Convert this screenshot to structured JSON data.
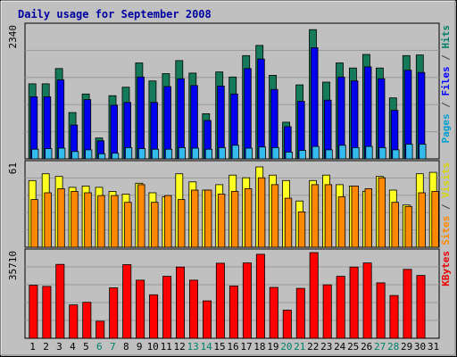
{
  "chart_data": {
    "type": "bar",
    "title": "Daily usage for September 2008",
    "days": [
      "1",
      "2",
      "3",
      "4",
      "5",
      "6",
      "7",
      "8",
      "9",
      "10",
      "11",
      "12",
      "13",
      "14",
      "15",
      "16",
      "17",
      "18",
      "19",
      "20",
      "21",
      "22",
      "23",
      "24",
      "25",
      "26",
      "27",
      "28",
      "29",
      "30",
      "31"
    ],
    "weekend_days": [
      "6",
      "7",
      "13",
      "14",
      "20",
      "21",
      "27",
      "28"
    ],
    "panels": [
      {
        "ymax_label": "2340",
        "ymax": 2340,
        "side_label_parts": [
          {
            "text": "Pages",
            "color": "#00a0d0"
          },
          {
            "text": " / ",
            "color": "#404040"
          },
          {
            "text": "Files",
            "color": "#0000ff"
          },
          {
            "text": " / ",
            "color": "#404040"
          },
          {
            "text": "Hits",
            "color": "#00806a"
          }
        ],
        "series": [
          {
            "name": "Hits",
            "color": "#157a5a",
            "values": [
              1330,
              1330,
              1600,
              820,
              1150,
              370,
              1120,
              1270,
              1700,
              1380,
              1510,
              1740,
              1520,
              800,
              1540,
              1450,
              1830,
              2010,
              1480,
              650,
              1310,
              2290,
              1360,
              1700,
              1610,
              1850,
              1610,
              1080,
              1830,
              1840
            ]
          },
          {
            "name": "Files",
            "color": "#0000ee",
            "values": [
              1100,
              1100,
              1400,
              600,
              1050,
              320,
              950,
              1000,
              1450,
              1000,
              1280,
              1420,
              1300,
              680,
              1290,
              1150,
              1600,
              1770,
              1230,
              570,
              1020,
              1970,
              1040,
              1450,
              1380,
              1630,
              1420,
              860,
              1570,
              1530
            ]
          },
          {
            "name": "Pages",
            "color": "#33bbee",
            "values": [
              170,
              180,
              190,
              130,
              160,
              90,
              100,
              200,
              180,
              170,
              170,
              200,
              190,
              170,
              200,
              240,
              190,
              210,
              200,
              120,
              150,
              220,
              160,
              240,
              200,
              220,
              200,
              160,
              260,
              260
            ]
          }
        ]
      },
      {
        "ymax_label": "61",
        "ymax": 61,
        "side_label_parts": [
          {
            "text": "Sites",
            "color": "#ff8800"
          },
          {
            "text": " / ",
            "color": "#404040"
          },
          {
            "text": "Visits",
            "color": "#d8d800"
          }
        ],
        "series": [
          {
            "name": "Visits",
            "color": "#ffff22",
            "values": [
              49,
              54,
              52,
              44,
              45,
              44,
              41,
              39,
              47,
              40,
              37,
              54,
              48,
              42,
              46,
              53,
              51,
              59,
              53,
              49,
              34,
              49,
              53,
              46,
              45,
              41,
              52,
              42,
              31,
              54,
              55
            ]
          },
          {
            "name": "Sites",
            "color": "#ff8800",
            "values": [
              35,
              40,
              43,
              41,
              40,
              38,
              38,
              33,
              46,
              33,
              38,
              35,
              42,
              42,
              39,
              41,
              43,
              51,
              46,
              36,
              26,
              46,
              46,
              37,
              45,
              43,
              51,
              33,
              30,
              40,
              41
            ]
          }
        ]
      },
      {
        "ymax_label": "35710",
        "ymax": 35710,
        "side_label_parts": [
          {
            "text": "KBytes",
            "color": "#ee0000"
          }
        ],
        "series": [
          {
            "name": "KBytes",
            "color": "#ff0000",
            "values": [
              22100,
              21600,
              30800,
              13900,
              15000,
              7100,
              21000,
              30700,
              24200,
              18100,
              25800,
              29700,
              24200,
              15600,
              31300,
              21800,
              31400,
              35000,
              21200,
              11700,
              20800,
              35710,
              22300,
              25800,
              29700,
              31400,
              23100,
              17800,
              28700,
              26200
            ]
          }
        ]
      }
    ]
  }
}
